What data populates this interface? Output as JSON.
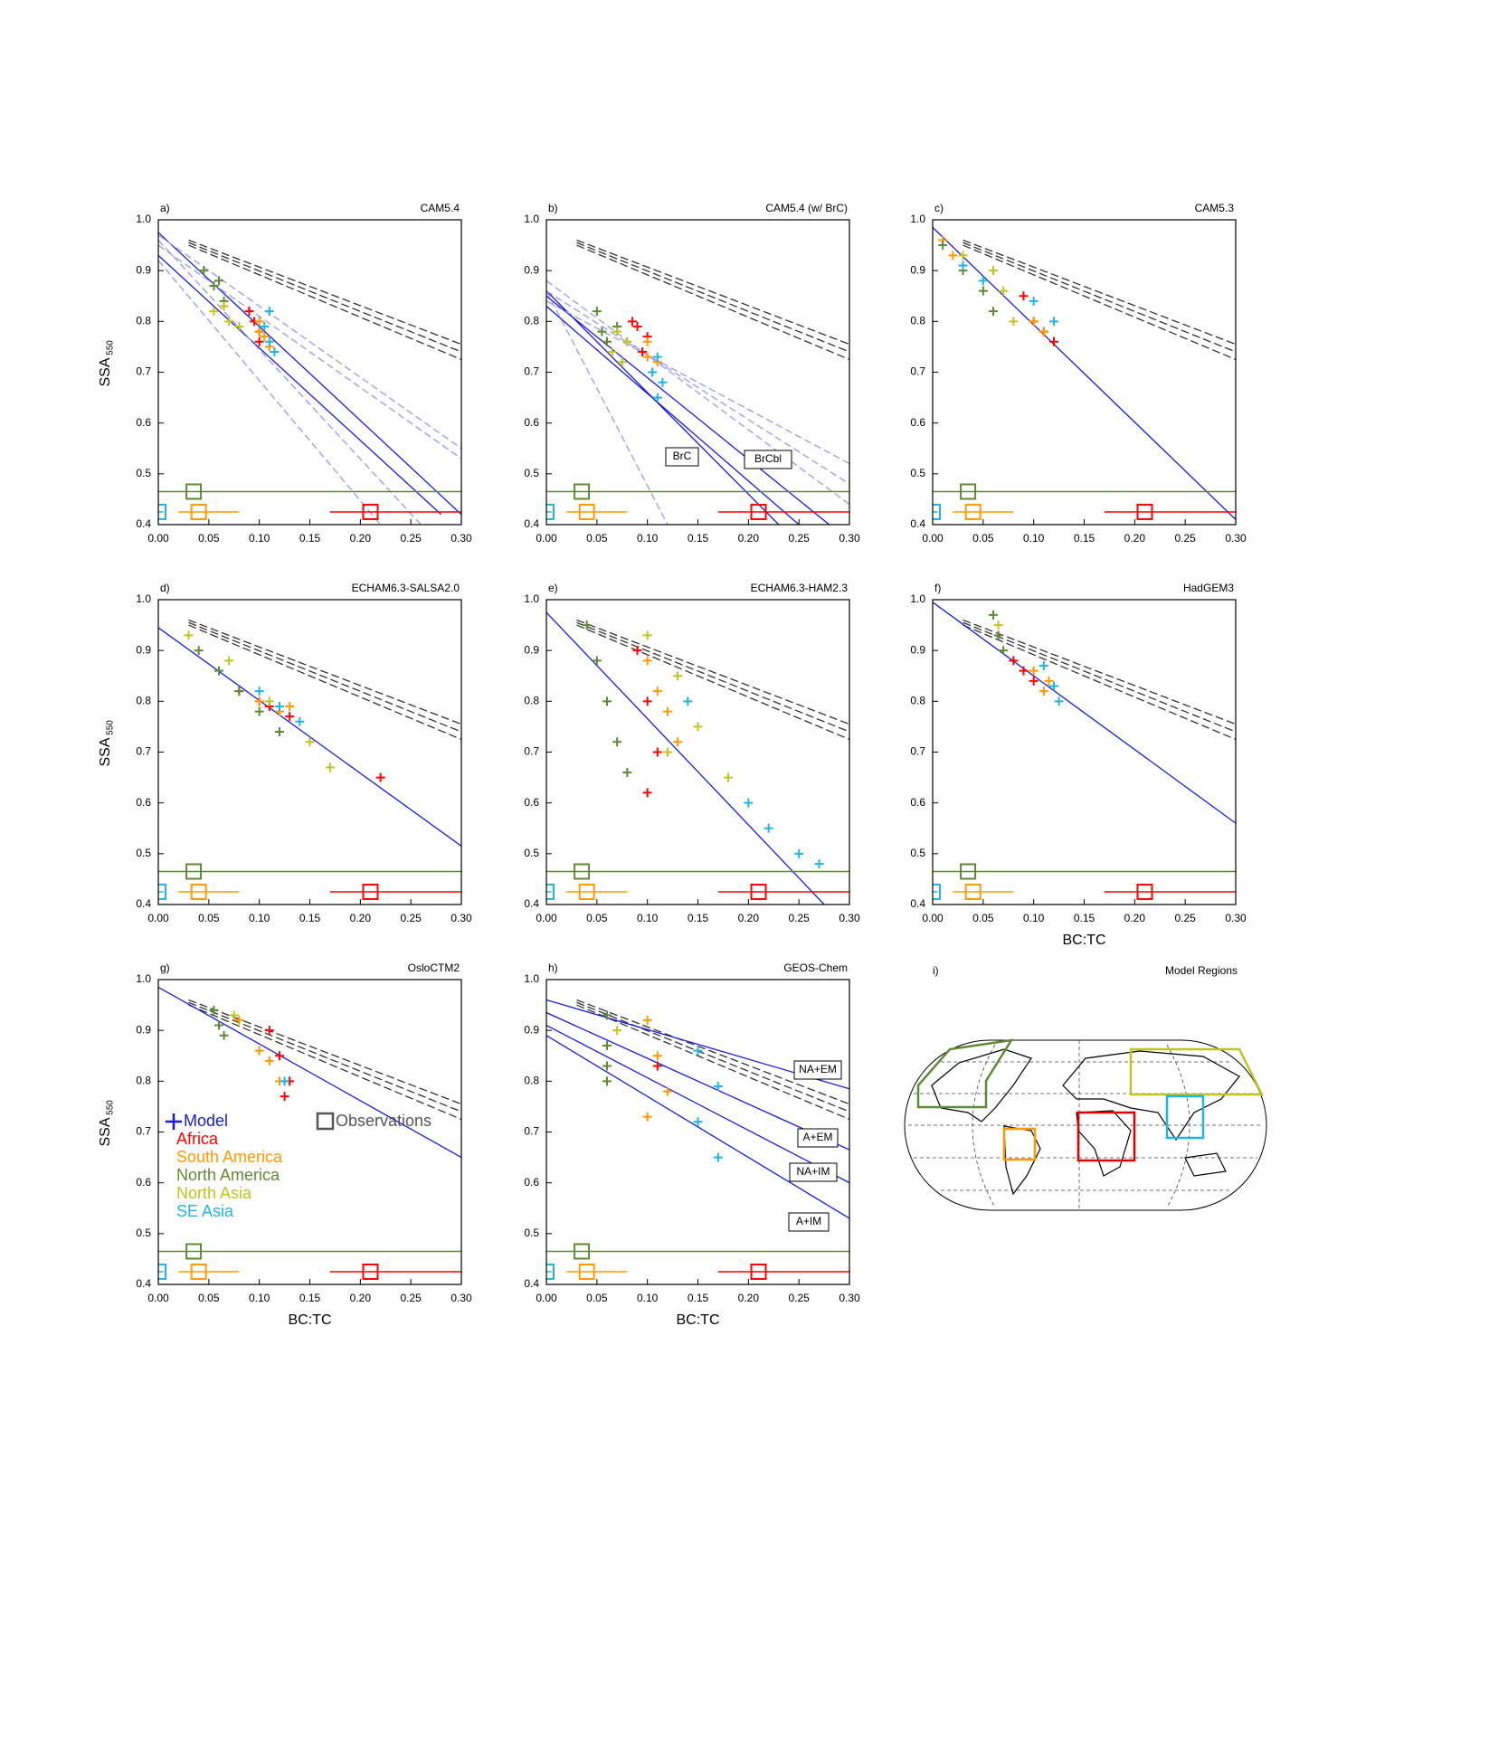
{
  "shared": {
    "xlim": [
      0,
      0.3
    ],
    "ylim": [
      0.4,
      1.0
    ],
    "xticks": [
      {
        "value": 0,
        "label": "0.00"
      },
      {
        "value": 0.05,
        "label": "0.05"
      },
      {
        "value": 0.1,
        "label": "0.10"
      },
      {
        "value": 0.15,
        "label": "0.15"
      },
      {
        "value": 0.2,
        "label": "0.20"
      },
      {
        "value": 0.25,
        "label": "0.25"
      },
      {
        "value": 0.3,
        "label": "0.30"
      }
    ],
    "yticks": [
      0.4,
      0.5,
      0.6,
      0.7,
      0.8,
      0.9,
      {
        "value": 1.0,
        "label": "1.0"
      }
    ],
    "xlabel": "BC:TC",
    "ylabel": "SSA",
    "ylabel_sub": "550",
    "legend": {
      "model": "Model",
      "observations": "Observations",
      "model_color": "#1a1adc",
      "observations_color": "#555555"
    },
    "regions": [
      {
        "name": "Africa",
        "color": "#ff0000"
      },
      {
        "name": "South America",
        "color": "#ff9900"
      },
      {
        "name": "North America",
        "color": "#5f8a35"
      },
      {
        "name": "North Asia",
        "color": "#bfc41f"
      },
      {
        "name": "SE Asia",
        "color": "#21b4e8"
      }
    ],
    "observations": [
      {
        "region": 2,
        "x": 0.035,
        "y": 0.465,
        "xrange": [
          0,
          0.3
        ]
      },
      {
        "region": 1,
        "x": 0.04,
        "y": 0.425,
        "xrange": [
          0.02,
          0.08
        ]
      },
      {
        "region": 0,
        "x": 0.21,
        "y": 0.425,
        "xrange": [
          0.17,
          0.3
        ]
      },
      {
        "region": 4,
        "x": 0.0,
        "y": 0.425,
        "xrange": [
          0,
          0.005
        ]
      }
    ],
    "reference_lines": [
      {
        "x": [
          0.03,
          0.3
        ],
        "y": [
          0.96,
          0.755
        ]
      },
      {
        "x": [
          0.03,
          0.3
        ],
        "y": [
          0.955,
          0.74
        ]
      },
      {
        "x": [
          0.03,
          0.3
        ],
        "y": [
          0.95,
          0.725
        ]
      }
    ]
  },
  "chart_data": [
    {
      "type": "scatter",
      "label": "a)",
      "title": "CAM5.4",
      "show_ylabel": true,
      "show_xlabel": false,
      "lines": [
        {
          "x": [
            0,
            0.3
          ],
          "y": [
            0.975,
            0.42
          ]
        },
        {
          "x": [
            0,
            0.28
          ],
          "y": [
            0.93,
            0.42
          ]
        },
        {
          "x": [
            0,
            0.3
          ],
          "y": [
            0.95,
            0.53
          ],
          "dash": true
        },
        {
          "x": [
            0,
            0.3
          ],
          "y": [
            0.97,
            0.55
          ],
          "dash": true
        },
        {
          "x": [
            0,
            0.22
          ],
          "y": [
            0.92,
            0.4
          ],
          "dash": true
        },
        {
          "x": [
            0,
            0.26
          ],
          "y": [
            0.96,
            0.4
          ],
          "dash": true
        }
      ],
      "points": [
        {
          "x": [
            0.09,
            0.1,
            0.095,
            0.1
          ],
          "y": [
            0.82,
            0.78,
            0.8,
            0.76
          ]
        },
        {
          "x": [
            0.1,
            0.105,
            0.11,
            0.1
          ],
          "y": [
            0.8,
            0.77,
            0.75,
            0.78
          ]
        },
        {
          "x": [
            0.045,
            0.055,
            0.065,
            0.06
          ],
          "y": [
            0.9,
            0.87,
            0.84,
            0.88
          ]
        },
        {
          "x": [
            0.055,
            0.07,
            0.08,
            0.065
          ],
          "y": [
            0.82,
            0.8,
            0.79,
            0.83
          ]
        },
        {
          "x": [
            0.11,
            0.11,
            0.115,
            0.105
          ],
          "y": [
            0.82,
            0.76,
            0.74,
            0.79
          ]
        }
      ]
    },
    {
      "type": "scatter",
      "label": "b)",
      "title": "CAM5.4 (w/ BrC)",
      "show_ylabel": false,
      "show_xlabel": false,
      "annotations": [
        "BrC",
        "BrCbl"
      ],
      "lines": [
        {
          "x": [
            0,
            0.23
          ],
          "y": [
            0.86,
            0.4
          ]
        },
        {
          "x": [
            0,
            0.28
          ],
          "y": [
            0.85,
            0.4
          ]
        },
        {
          "x": [
            0,
            0.25
          ],
          "y": [
            0.83,
            0.4
          ]
        },
        {
          "x": [
            0,
            0.3
          ],
          "y": [
            0.86,
            0.48
          ],
          "dash": true
        },
        {
          "x": [
            0,
            0.3
          ],
          "y": [
            0.84,
            0.52
          ],
          "dash": true
        },
        {
          "x": [
            0,
            0.12
          ],
          "y": [
            0.86,
            0.4
          ],
          "dash": true
        },
        {
          "x": [
            0,
            0.3
          ],
          "y": [
            0.88,
            0.44
          ],
          "dash": true
        }
      ],
      "points": [
        {
          "x": [
            0.09,
            0.095,
            0.1,
            0.085
          ],
          "y": [
            0.79,
            0.74,
            0.77,
            0.8
          ]
        },
        {
          "x": [
            0.1,
            0.105,
            0.1,
            0.11
          ],
          "y": [
            0.73,
            0.7,
            0.76,
            0.72
          ]
        },
        {
          "x": [
            0.05,
            0.055,
            0.06,
            0.07
          ],
          "y": [
            0.82,
            0.78,
            0.76,
            0.79
          ]
        },
        {
          "x": [
            0.065,
            0.075,
            0.08,
            0.07
          ],
          "y": [
            0.74,
            0.72,
            0.76,
            0.78
          ]
        },
        {
          "x": [
            0.11,
            0.115,
            0.11,
            0.105
          ],
          "y": [
            0.73,
            0.68,
            0.65,
            0.7
          ]
        }
      ]
    },
    {
      "type": "scatter",
      "label": "c)",
      "title": "CAM5.3",
      "show_ylabel": false,
      "show_xlabel": false,
      "lines": [
        {
          "x": [
            0,
            0.3
          ],
          "y": [
            0.985,
            0.41
          ]
        }
      ],
      "points": [
        {
          "x": [
            0.09,
            0.1,
            0.11,
            0.12
          ],
          "y": [
            0.85,
            0.8,
            0.78,
            0.76
          ]
        },
        {
          "x": [
            0.01,
            0.02,
            0.1,
            0.11
          ],
          "y": [
            0.96,
            0.93,
            0.8,
            0.78
          ]
        },
        {
          "x": [
            0.01,
            0.03,
            0.05,
            0.06
          ],
          "y": [
            0.95,
            0.9,
            0.86,
            0.82
          ]
        },
        {
          "x": [
            0.03,
            0.06,
            0.08,
            0.07
          ],
          "y": [
            0.93,
            0.9,
            0.8,
            0.86
          ]
        },
        {
          "x": [
            0.03,
            0.05,
            0.1,
            0.12
          ],
          "y": [
            0.91,
            0.88,
            0.84,
            0.8
          ]
        }
      ]
    },
    {
      "type": "scatter",
      "label": "d)",
      "title": "ECHAM6.3-SALSA2.0",
      "show_ylabel": true,
      "show_xlabel": false,
      "lines": [
        {
          "x": [
            0,
            0.3
          ],
          "y": [
            0.945,
            0.515
          ]
        }
      ],
      "points": [
        {
          "x": [
            0.08,
            0.1,
            0.11,
            0.13,
            0.22
          ],
          "y": [
            0.82,
            0.8,
            0.79,
            0.77,
            0.65
          ]
        },
        {
          "x": [
            0.1,
            0.12,
            0.13
          ],
          "y": [
            0.8,
            0.78,
            0.79
          ]
        },
        {
          "x": [
            0.04,
            0.06,
            0.08,
            0.1,
            0.12
          ],
          "y": [
            0.9,
            0.86,
            0.82,
            0.78,
            0.74
          ]
        },
        {
          "x": [
            0.03,
            0.07,
            0.11,
            0.15,
            0.17
          ],
          "y": [
            0.93,
            0.88,
            0.8,
            0.72,
            0.67
          ]
        },
        {
          "x": [
            0.1,
            0.12,
            0.14
          ],
          "y": [
            0.82,
            0.79,
            0.76
          ]
        }
      ]
    },
    {
      "type": "scatter",
      "label": "e)",
      "title": "ECHAM6.3-HAM2.3",
      "show_ylabel": false,
      "show_xlabel": false,
      "lines": [
        {
          "x": [
            0,
            0.275
          ],
          "y": [
            0.975,
            0.4
          ]
        }
      ],
      "points": [
        {
          "x": [
            0.09,
            0.1,
            0.11,
            0.1
          ],
          "y": [
            0.9,
            0.8,
            0.7,
            0.62
          ]
        },
        {
          "x": [
            0.1,
            0.12,
            0.13,
            0.11
          ],
          "y": [
            0.88,
            0.78,
            0.72,
            0.82
          ]
        },
        {
          "x": [
            0.04,
            0.05,
            0.06,
            0.07,
            0.08
          ],
          "y": [
            0.95,
            0.88,
            0.8,
            0.72,
            0.66
          ]
        },
        {
          "x": [
            0.1,
            0.13,
            0.15,
            0.18,
            0.12
          ],
          "y": [
            0.93,
            0.85,
            0.75,
            0.65,
            0.7
          ]
        },
        {
          "x": [
            0.14,
            0.22,
            0.25,
            0.27,
            0.2
          ],
          "y": [
            0.8,
            0.55,
            0.5,
            0.48,
            0.6
          ]
        }
      ]
    },
    {
      "type": "scatter",
      "label": "f)",
      "title": "HadGEM3",
      "show_ylabel": false,
      "show_xlabel": true,
      "lines": [
        {
          "x": [
            0,
            0.3
          ],
          "y": [
            0.995,
            0.56
          ]
        }
      ],
      "points": [
        {
          "x": [
            0.08,
            0.09,
            0.1
          ],
          "y": [
            0.88,
            0.86,
            0.84
          ]
        },
        {
          "x": [
            0.1,
            0.11,
            0.115
          ],
          "y": [
            0.86,
            0.82,
            0.84
          ]
        },
        {
          "x": [
            0.06,
            0.065,
            0.07
          ],
          "y": [
            0.97,
            0.93,
            0.9
          ]
        },
        {
          "x": [
            0.065
          ],
          "y": [
            0.95
          ]
        },
        {
          "x": [
            0.11,
            0.12,
            0.125
          ],
          "y": [
            0.87,
            0.83,
            0.8
          ]
        }
      ]
    },
    {
      "type": "scatter",
      "label": "g)",
      "title": "OsloCTM2",
      "show_ylabel": true,
      "show_xlabel": true,
      "show_legend": true,
      "lines": [
        {
          "x": [
            0,
            0.3
          ],
          "y": [
            0.985,
            0.65
          ]
        }
      ],
      "points": [
        {
          "x": [
            0.11,
            0.12,
            0.13,
            0.125
          ],
          "y": [
            0.9,
            0.85,
            0.8,
            0.77
          ]
        },
        {
          "x": [
            0.08,
            0.1,
            0.11,
            0.12
          ],
          "y": [
            0.92,
            0.86,
            0.84,
            0.8
          ]
        },
        {
          "x": [
            0.055,
            0.06,
            0.065
          ],
          "y": [
            0.94,
            0.91,
            0.89
          ]
        },
        {
          "x": [
            0.075
          ],
          "y": [
            0.93
          ]
        },
        {
          "x": [
            0.125
          ],
          "y": [
            0.8
          ]
        }
      ]
    },
    {
      "type": "scatter",
      "label": "h)",
      "title": "GEOS-Chem",
      "show_ylabel": false,
      "show_xlabel": true,
      "annotations": [
        "NA+EM",
        "A+EM",
        "NA+IM",
        "A+IM"
      ],
      "lines": [
        {
          "x": [
            0,
            0.3
          ],
          "y": [
            0.96,
            0.785
          ]
        },
        {
          "x": [
            0,
            0.3
          ],
          "y": [
            0.935,
            0.665
          ]
        },
        {
          "x": [
            0,
            0.3
          ],
          "y": [
            0.91,
            0.6
          ]
        },
        {
          "x": [
            0,
            0.3
          ],
          "y": [
            0.89,
            0.53
          ]
        }
      ],
      "points": [
        {
          "x": [
            0.11
          ],
          "y": [
            0.83
          ]
        },
        {
          "x": [
            0.1,
            0.11,
            0.12,
            0.1
          ],
          "y": [
            0.92,
            0.85,
            0.78,
            0.73
          ]
        },
        {
          "x": [
            0.06,
            0.06,
            0.06,
            0.06
          ],
          "y": [
            0.93,
            0.87,
            0.83,
            0.8
          ]
        },
        {
          "x": [
            0.07
          ],
          "y": [
            0.9
          ]
        },
        {
          "x": [
            0.15,
            0.17,
            0.15,
            0.17
          ],
          "y": [
            0.86,
            0.79,
            0.72,
            0.65
          ]
        }
      ]
    }
  ],
  "map": {
    "label": "i)",
    "title": "Model Regions"
  }
}
